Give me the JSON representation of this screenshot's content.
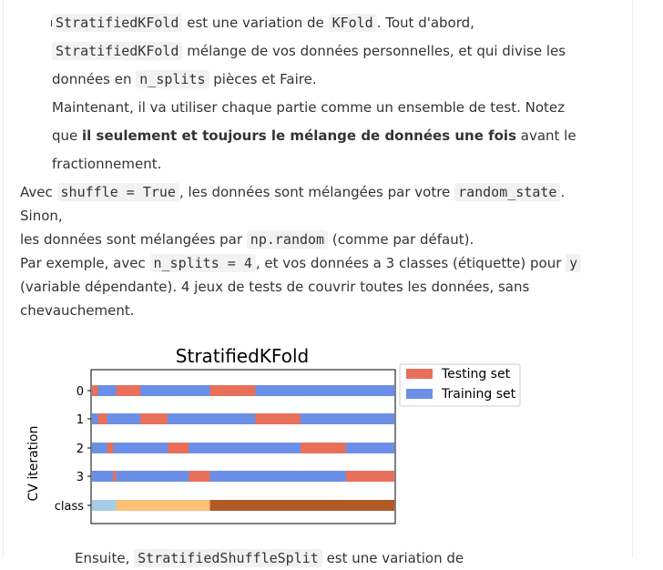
{
  "bullet": {
    "line1": {
      "code1": "StratifiedKFold",
      "t1": " est une variation de ",
      "code2": "KFold",
      "t2": ". Tout d'abord,"
    },
    "line2": {
      "code1": "StratifiedKFold",
      "t1": " mélange de vos données personnelles, et qui divise les"
    },
    "line3": {
      "t1": "données en ",
      "code1": "n_splits",
      "t2": " pièces et Faire."
    },
    "line4": {
      "t1": "Maintenant, il va utiliser chaque partie comme un ensemble de test. Notez"
    },
    "line5": {
      "t1": "que ",
      "b1": "il seulement et toujours le mélange de données une fois",
      "t2": " avant le"
    },
    "line6": {
      "t1": "fractionnement."
    }
  },
  "para": {
    "line1": {
      "t1": "Avec ",
      "code1": "shuffle = True",
      "t2": ", les données sont mélangées par votre ",
      "code2": "random_state",
      "t3": "."
    },
    "line2": {
      "t1": "Sinon,"
    },
    "line3": {
      "t1": "les données sont mélangées par ",
      "code1": "np.random",
      "t2": " (comme par défaut)."
    },
    "line4": {
      "t1": "Par exemple, avec ",
      "code1": "n_splits = 4",
      "t2": ", et vos données a 3 classes (étiquette) pour ",
      "code2": "y"
    },
    "line5": {
      "t1": "(variable dépendante). 4 jeux de tests de couvrir toutes les données, sans"
    },
    "line6": {
      "t1": "chevauchement."
    }
  },
  "cut_line": {
    "t1": "Ensuite, ",
    "code1": "StratifiedShuffleSplit",
    "t2": " est une variation de"
  },
  "chart_data": {
    "type": "bar",
    "title": "StratifiedKFold",
    "ylabel": "CV iteration",
    "xlabel": "",
    "n_samples": 100,
    "xlim": [
      0,
      100
    ],
    "categories": [
      "0",
      "1",
      "2",
      "3",
      "class"
    ],
    "legend": {
      "placement": "outside-top-right",
      "entries": [
        "Testing set",
        "Training set"
      ]
    },
    "colors": {
      "testing": "#e8705a",
      "training": "#6b8fe6",
      "class0": "#a6cde3",
      "class1": "#fdc074",
      "class2": "#b05a28"
    },
    "iterations": [
      {
        "label": "0",
        "testing_ranges": [
          [
            0,
            2
          ],
          [
            8,
            16
          ],
          [
            39,
            54
          ]
        ]
      },
      {
        "label": "1",
        "testing_ranges": [
          [
            2,
            5
          ],
          [
            16,
            25
          ],
          [
            54,
            69
          ]
        ]
      },
      {
        "label": "2",
        "testing_ranges": [
          [
            5,
            7
          ],
          [
            25,
            32
          ],
          [
            69,
            84
          ]
        ]
      },
      {
        "label": "3",
        "testing_ranges": [
          [
            7,
            8
          ],
          [
            32,
            39
          ],
          [
            84,
            100
          ]
        ]
      }
    ],
    "class_ranges": [
      {
        "class": 0,
        "range": [
          0,
          8
        ]
      },
      {
        "class": 1,
        "range": [
          8,
          39
        ]
      },
      {
        "class": 2,
        "range": [
          39,
          100
        ]
      }
    ]
  }
}
